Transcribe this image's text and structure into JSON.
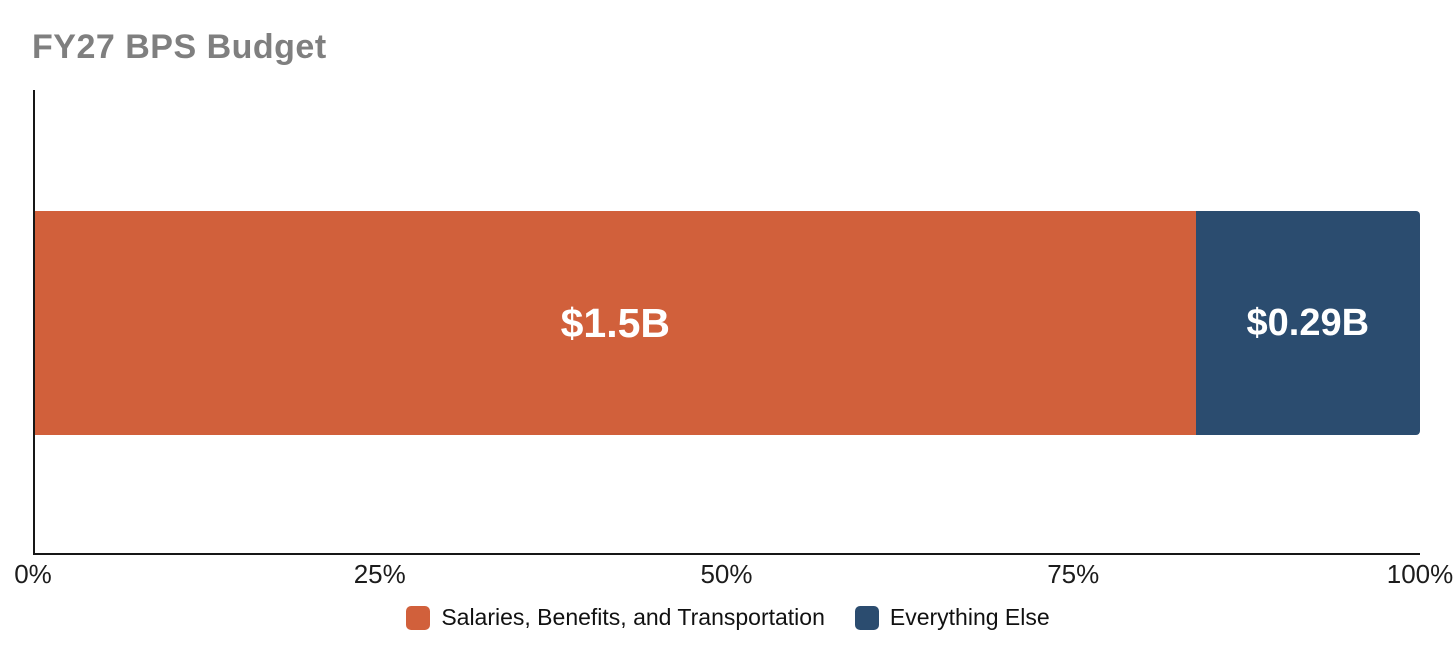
{
  "chart_data": {
    "type": "bar",
    "stacked": true,
    "orientation": "horizontal",
    "title": "FY27 BPS Budget",
    "title_color": "#7f7f7f",
    "axis_color": "#161616",
    "grid": false,
    "series": [
      {
        "name": "Salaries, Benefits, and Transportation",
        "value_billions": 1.5,
        "data_label": "$1.5B",
        "percent_of_total": 83.8,
        "color": "#d1603b"
      },
      {
        "name": "Everything Else",
        "value_billions": 0.29,
        "data_label": "$0.29B",
        "percent_of_total": 16.2,
        "color": "#2b4c6f"
      }
    ],
    "x_axis": {
      "unit": "percent",
      "range": [
        0,
        100
      ],
      "tick_labels": [
        "0%",
        "25%",
        "50%",
        "75%",
        "100%"
      ],
      "tick_positions_percent": [
        0,
        25,
        50,
        75,
        100
      ]
    },
    "legend": {
      "position": "bottom"
    }
  }
}
